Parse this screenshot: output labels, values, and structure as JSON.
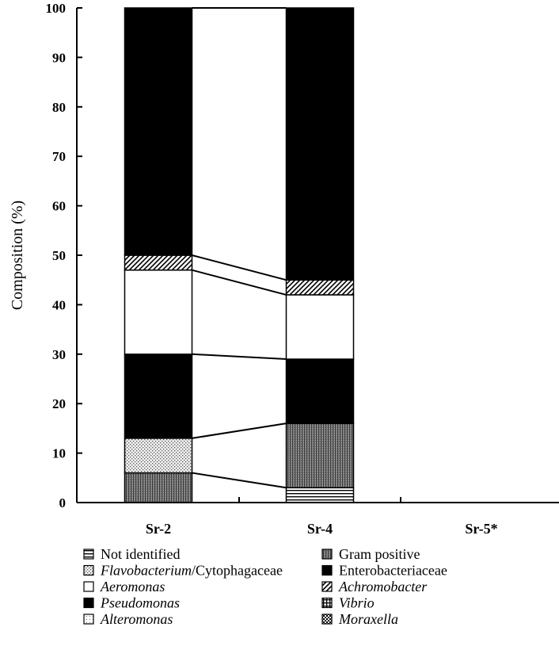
{
  "chart_data": {
    "type": "bar",
    "stacked": true,
    "title": "",
    "xlabel": "",
    "ylabel": "Composition (%)",
    "ylim": [
      0,
      100
    ],
    "yticks": [
      0,
      10,
      20,
      30,
      40,
      50,
      60,
      70,
      80,
      90,
      100
    ],
    "grid": false,
    "categories": [
      "Sr-2",
      "Sr-4",
      "Sr-5*"
    ],
    "series": [
      {
        "name": "Not identified",
        "display": [
          {
            "t": "Not identified",
            "i": false
          }
        ],
        "pattern": "hlines",
        "values": [
          0,
          3,
          0
        ]
      },
      {
        "name": "Moraxella",
        "display": [
          {
            "t": "Moraxella",
            "i": true
          }
        ],
        "pattern": "checker",
        "values": [
          0,
          0,
          0
        ]
      },
      {
        "name": "Gram positive",
        "display": [
          {
            "t": "Gram positive",
            "i": false
          }
        ],
        "pattern": "dense",
        "values": [
          6,
          13,
          0
        ]
      },
      {
        "name": "Flavobacterium/Cytophagaceae",
        "display": [
          {
            "t": "Flavobacterium",
            "i": true
          },
          {
            "t": "/Cytophagaceae",
            "i": false
          }
        ],
        "pattern": "dots",
        "values": [
          7,
          0,
          0
        ]
      },
      {
        "name": "Pseudomonas",
        "display": [
          {
            "t": "Pseudomonas",
            "i": true
          }
        ],
        "pattern": "black",
        "values": [
          17,
          13,
          0
        ]
      },
      {
        "name": "Aeromonas",
        "display": [
          {
            "t": "Aeromonas",
            "i": true
          }
        ],
        "pattern": "white",
        "values": [
          17,
          13,
          0
        ]
      },
      {
        "name": "Achromobacter",
        "display": [
          {
            "t": "Achromobacter",
            "i": true
          }
        ],
        "pattern": "diag",
        "values": [
          3,
          3,
          0
        ]
      },
      {
        "name": "Enterobacteriaceae",
        "display": [
          {
            "t": "Enterobacteriaceae",
            "i": false
          }
        ],
        "pattern": "black",
        "values": [
          50,
          55,
          0
        ]
      },
      {
        "name": "Vibrio",
        "display": [
          {
            "t": "Vibrio",
            "i": true
          }
        ],
        "pattern": "grid",
        "values": [
          0,
          0,
          0
        ]
      },
      {
        "name": "Alteromonas",
        "display": [
          {
            "t": "Alteromonas",
            "i": true
          }
        ],
        "pattern": "fdots",
        "values": [
          0,
          0,
          0
        ]
      }
    ],
    "legend": {
      "placement": "bottom",
      "columns": [
        [
          "Not identified",
          "Flavobacterium/Cytophagaceae",
          "Aeromonas",
          "Pseudomonas",
          "Alteromonas"
        ],
        [
          "Gram positive",
          "Enterobacteriaceae",
          "Achromobacter",
          "Vibrio",
          "Moraxella"
        ]
      ]
    }
  }
}
